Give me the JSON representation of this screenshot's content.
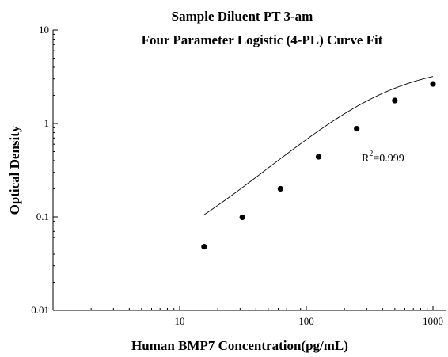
{
  "chart_data": {
    "type": "scatter",
    "title": "Sample Diluent PT 3-am",
    "subtitle": "Four Parameter Logistic (4-PL) Curve Fit",
    "xlabel": "Human BMP7 Concentration(pg/mL)",
    "ylabel": "Optical Density",
    "x_scale": "log",
    "y_scale": "log",
    "xlim": [
      1,
      1000
    ],
    "ylim": [
      0.01,
      10
    ],
    "x_tick_labels": [
      "10",
      "100",
      "1000"
    ],
    "y_tick_labels": [
      "0.01",
      "0.1",
      "1",
      "10"
    ],
    "grid": false,
    "series": [
      {
        "x": [
          15.6,
          31.25,
          62.5,
          125,
          250,
          500,
          1000
        ],
        "y": [
          0.048,
          0.099,
          0.2,
          0.44,
          0.88,
          1.76,
          2.65
        ]
      }
    ],
    "fit_curve": {
      "type": "4PL",
      "x_range": [
        15.6,
        1000
      ],
      "A": 0.025,
      "B": 1.2,
      "C": 420,
      "D": 4.3
    },
    "annotation": {
      "text_base": "R",
      "text_sup": "2",
      "text_rest": "=0.999"
    }
  }
}
